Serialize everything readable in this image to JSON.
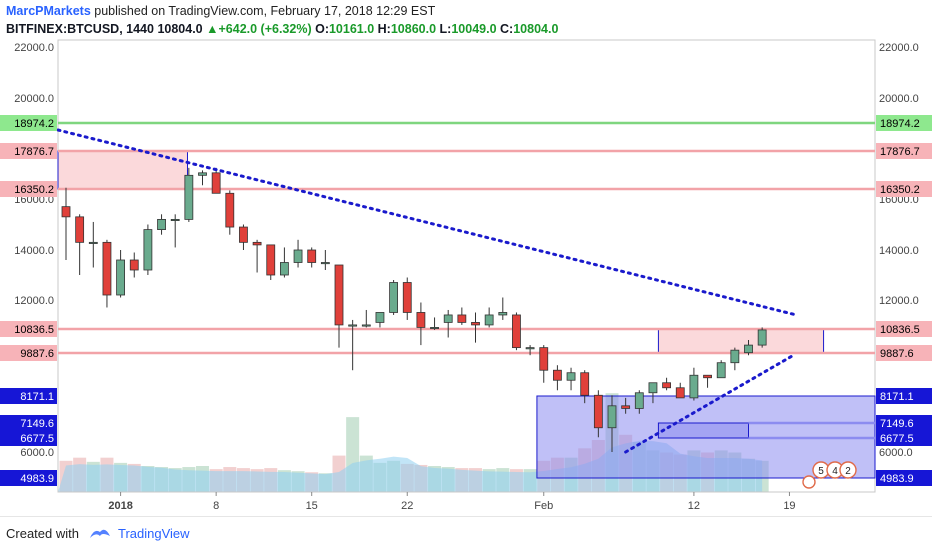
{
  "header": {
    "author": "MarcPMarkets",
    "published_text": "published on TradingView.com, February 17, 2018 12:29 EST",
    "symbol": "BITFINEX:BTCUSD, 1440",
    "last": "10804.0",
    "arrow_icon": "up-triangle-icon",
    "change": "+642.0 (+6.32%)",
    "o_label": "O:",
    "o_value": "10161.0",
    "h_label": "H:",
    "h_value": "10860.0",
    "l_label": "L:",
    "l_value": "10049.0",
    "c_label": "C:",
    "c_value": "10804.0"
  },
  "footer": {
    "created_with": "Created with",
    "brand": "TradingView",
    "logo_icon": "tradingview-logo-icon"
  },
  "colors": {
    "up": "#6aab8e",
    "down": "#e0403a",
    "trend": "#1a1acc",
    "pink_zone": "#f8b9bd",
    "blue_zone": "#8c8cf0",
    "green_line": "#7fd67f",
    "red_line": "#f2a3a8"
  },
  "chart_data": {
    "type": "candlestick",
    "y_ticks": [
      "22000.0",
      "20000.0",
      "16000.0",
      "14000.0",
      "12000.0",
      "6000.0"
    ],
    "x_ticks": [
      {
        "label": "2018",
        "day": 4
      },
      {
        "label": "8",
        "day": 11
      },
      {
        "label": "15",
        "day": 18
      },
      {
        "label": "22",
        "day": 25
      },
      {
        "label": "Feb",
        "day": 35
      },
      {
        "label": "12",
        "day": 46
      },
      {
        "label": "19",
        "day": 53
      }
    ],
    "price_labels": [
      {
        "value": "18974.2",
        "side": "both",
        "kind": "green"
      },
      {
        "value": "17876.7",
        "side": "both",
        "kind": "red"
      },
      {
        "value": "16350.2",
        "side": "both",
        "kind": "red"
      },
      {
        "value": "10836.5",
        "side": "both",
        "kind": "red"
      },
      {
        "value": "9887.6",
        "side": "both",
        "kind": "red"
      },
      {
        "value": "8171.1",
        "side": "both",
        "kind": "blue"
      },
      {
        "value": "7149.6",
        "side": "both",
        "kind": "blue"
      },
      {
        "value": "6677.5",
        "side": "both",
        "kind": "blue"
      },
      {
        "value": "4983.9",
        "side": "both",
        "kind": "blue"
      }
    ],
    "candles": [
      [
        15700,
        16400,
        13600,
        15300
      ],
      [
        15300,
        15400,
        13000,
        14300
      ],
      [
        14300,
        15100,
        13300,
        14300
      ],
      [
        14300,
        14400,
        11700,
        12200
      ],
      [
        12200,
        14000,
        12100,
        13600
      ],
      [
        13600,
        13900,
        12900,
        13200
      ],
      [
        13200,
        15000,
        13000,
        14800
      ],
      [
        14800,
        15400,
        14600,
        15200
      ],
      [
        15200,
        15400,
        14100,
        15200
      ],
      [
        15200,
        17200,
        15100,
        16900
      ],
      [
        16900,
        17100,
        16500,
        17000
      ],
      [
        17000,
        17200,
        16300,
        16200
      ],
      [
        16200,
        16300,
        14600,
        14900
      ],
      [
        14900,
        15000,
        14000,
        14300
      ],
      [
        14300,
        14400,
        13100,
        14200
      ],
      [
        14200,
        14200,
        12800,
        13000
      ],
      [
        13000,
        14100,
        12900,
        13500
      ],
      [
        13500,
        14400,
        13300,
        14000
      ],
      [
        14000,
        14100,
        13300,
        13500
      ],
      [
        13500,
        14000,
        13200,
        13500
      ],
      [
        13400,
        13400,
        10100,
        11000
      ],
      [
        11000,
        11200,
        9200,
        11000
      ],
      [
        11000,
        11600,
        10900,
        11000
      ],
      [
        11100,
        11400,
        10900,
        11500
      ],
      [
        11500,
        12800,
        11400,
        12700
      ],
      [
        12700,
        12900,
        11200,
        11500
      ],
      [
        11500,
        11900,
        10200,
        10900
      ],
      [
        10900,
        11300,
        10800,
        10900
      ],
      [
        11100,
        11600,
        10500,
        11400
      ],
      [
        11400,
        11700,
        11000,
        11100
      ],
      [
        11100,
        11500,
        10300,
        11000
      ],
      [
        11000,
        11700,
        10900,
        11400
      ],
      [
        11400,
        12100,
        11200,
        11500
      ],
      [
        11400,
        11500,
        10000,
        10100
      ],
      [
        10100,
        10200,
        9800,
        10100
      ],
      [
        10100,
        10200,
        8700,
        9200
      ],
      [
        9200,
        9400,
        8400,
        8800
      ],
      [
        8800,
        9300,
        8400,
        9100
      ],
      [
        9100,
        9200,
        7900,
        8200
      ],
      [
        8200,
        8400,
        6700,
        7000
      ],
      [
        7000,
        8200,
        6000,
        7800
      ],
      [
        7800,
        8100,
        7500,
        7700
      ],
      [
        7700,
        8400,
        7500,
        8300
      ],
      [
        8300,
        8600,
        7900,
        8700
      ],
      [
        8700,
        8900,
        8400,
        8500
      ],
      [
        8500,
        8700,
        8100,
        8100
      ],
      [
        8100,
        9300,
        8000,
        9000
      ],
      [
        9000,
        9000,
        8500,
        8900
      ],
      [
        8900,
        9600,
        8900,
        9500
      ],
      [
        9500,
        10100,
        9200,
        10000
      ],
      [
        9900,
        10400,
        9800,
        10200
      ],
      [
        10200,
        10900,
        10100,
        10800
      ]
    ],
    "volume": [
      0.3,
      0.33,
      0.29,
      0.33,
      0.28,
      0.27,
      0.25,
      0.24,
      0.23,
      0.24,
      0.25,
      0.22,
      0.24,
      0.23,
      0.22,
      0.23,
      0.21,
      0.2,
      0.19,
      0.18,
      0.35,
      0.72,
      0.35,
      0.28,
      0.3,
      0.27,
      0.26,
      0.25,
      0.24,
      0.23,
      0.23,
      0.22,
      0.23,
      0.22,
      0.22,
      0.3,
      0.33,
      0.33,
      0.42,
      0.5,
      0.95,
      0.55,
      0.48,
      0.4,
      0.38,
      0.36,
      0.4,
      0.38,
      0.4,
      0.38,
      0.32,
      0.3
    ],
    "zones": [
      {
        "name": "pink-top",
        "x0": 0,
        "x1": 8.9,
        "y0": 16350.2,
        "y1": 17876.7,
        "fill": "#f8b9bd",
        "stroke": "#1a1acc"
      },
      {
        "name": "pink-right",
        "x0": 43.4,
        "x1": 55.5,
        "y0": 9887.6,
        "y1": 10836.5,
        "fill": "#f8b9bd",
        "stroke": "#1a1acc"
      },
      {
        "name": "blue-big",
        "x0": 34.5,
        "x1": 58,
        "y0": 4983.9,
        "y1": 8171.1,
        "fill": "#8c8cf0",
        "stroke": "#1a1acc"
      },
      {
        "name": "blue-small",
        "x0": 43.4,
        "x1": 50,
        "y0": 6677.5,
        "y1": 7149.6,
        "fill": "#8c8cf0",
        "stroke": "#1a1acc"
      }
    ],
    "trendlines": [
      {
        "name": "down-trend",
        "from": [
          0,
          18700
        ],
        "to": [
          53.5,
          11400
        ]
      },
      {
        "name": "up-trend",
        "from": [
          41,
          6000
        ],
        "to": [
          53.3,
          9800
        ]
      }
    ],
    "badges": [
      "5",
      "4",
      "2"
    ]
  }
}
